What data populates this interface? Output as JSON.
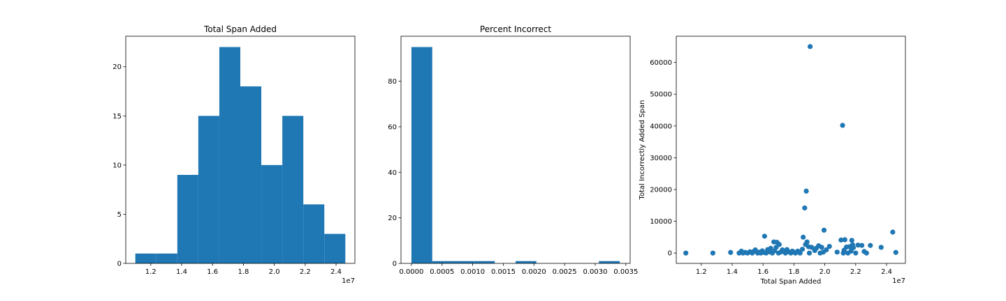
{
  "colors": {
    "bar": "#1f77b4",
    "point": "#1f77b4",
    "axis": "#000000",
    "background": "#ffffff"
  },
  "chart_data": [
    {
      "type": "bar",
      "subtype": "histogram",
      "title": "Total Span Added",
      "xlabel": "",
      "ylabel": "",
      "bin_edges": [
        11000000,
        12360000,
        13720000,
        15080000,
        16440000,
        17800000,
        19160000,
        20520000,
        21880000,
        23240000,
        24600000
      ],
      "values": [
        1,
        1,
        9,
        15,
        22,
        18,
        10,
        15,
        6,
        3
      ],
      "xlim": [
        10380000,
        25220000
      ],
      "ylim": [
        0,
        23.1
      ],
      "xticks": [
        12000000,
        14000000,
        16000000,
        18000000,
        20000000,
        22000000,
        24000000
      ],
      "xtick_labels": [
        "1.2",
        "1.4",
        "1.6",
        "1.8",
        "2.0",
        "2.2",
        "2.4"
      ],
      "x_offset_label": "1e7",
      "yticks": [
        0,
        5,
        10,
        15,
        20
      ],
      "ytick_labels": [
        "0",
        "5",
        "10",
        "15",
        "20"
      ],
      "grid": false,
      "legend": null
    },
    {
      "type": "bar",
      "subtype": "histogram",
      "title": "Percent Incorrect",
      "xlabel": "",
      "ylabel": "",
      "bin_edges": [
        0,
        0.00034,
        0.00068,
        0.00102,
        0.00136,
        0.0017,
        0.00204,
        0.00238,
        0.00272,
        0.00306,
        0.0034
      ],
      "values": [
        95,
        1,
        1,
        1,
        0,
        1,
        0,
        0,
        0,
        1
      ],
      "xlim": [
        -0.00017,
        0.00357
      ],
      "ylim": [
        0,
        99.75
      ],
      "xticks": [
        0,
        0.0005,
        0.001,
        0.0015,
        0.002,
        0.0025,
        0.003,
        0.0035
      ],
      "xtick_labels": [
        "0.0000",
        "0.0005",
        "0.0010",
        "0.0015",
        "0.0020",
        "0.0025",
        "0.0030",
        "0.0035"
      ],
      "yticks": [
        0,
        20,
        40,
        60,
        80
      ],
      "ytick_labels": [
        "0",
        "20",
        "40",
        "60",
        "80"
      ],
      "grid": false,
      "legend": null
    },
    {
      "type": "scatter",
      "title": "",
      "xlabel": "Total Span Added",
      "ylabel": "Total Incorrectly Added Span",
      "xlim": [
        10380000,
        25220000
      ],
      "ylim": [
        -3250,
        68250
      ],
      "xticks": [
        12000000,
        14000000,
        16000000,
        18000000,
        20000000,
        22000000,
        24000000
      ],
      "xtick_labels": [
        "1.2",
        "1.4",
        "1.6",
        "1.8",
        "2.0",
        "2.2",
        "2.4"
      ],
      "x_offset_label": "1e7",
      "yticks": [
        0,
        10000,
        20000,
        30000,
        40000,
        50000,
        60000
      ],
      "ytick_labels": [
        "0",
        "10000",
        "20000",
        "30000",
        "40000",
        "50000",
        "60000"
      ],
      "grid": false,
      "legend": null,
      "points": [
        [
          11000000,
          0
        ],
        [
          12750000,
          0
        ],
        [
          13900000,
          200
        ],
        [
          14450000,
          0
        ],
        [
          14600000,
          600
        ],
        [
          14700000,
          0
        ],
        [
          14850000,
          200
        ],
        [
          15000000,
          0
        ],
        [
          15150000,
          400
        ],
        [
          15300000,
          0
        ],
        [
          15400000,
          500
        ],
        [
          15500000,
          1000
        ],
        [
          15650000,
          0
        ],
        [
          15750000,
          300
        ],
        [
          15850000,
          0
        ],
        [
          15950000,
          700
        ],
        [
          16050000,
          200
        ],
        [
          16100000,
          5300
        ],
        [
          16200000,
          0
        ],
        [
          16300000,
          1100
        ],
        [
          16400000,
          400
        ],
        [
          16500000,
          1500
        ],
        [
          16600000,
          0
        ],
        [
          16700000,
          3500
        ],
        [
          16750000,
          700
        ],
        [
          16850000,
          1800
        ],
        [
          16900000,
          3400
        ],
        [
          17000000,
          0
        ],
        [
          17050000,
          2700
        ],
        [
          17150000,
          300
        ],
        [
          17250000,
          1000
        ],
        [
          17350000,
          600
        ],
        [
          17450000,
          0
        ],
        [
          17550000,
          1100
        ],
        [
          17650000,
          400
        ],
        [
          17800000,
          0
        ],
        [
          17900000,
          600
        ],
        [
          18000000,
          300
        ],
        [
          18100000,
          0
        ],
        [
          18250000,
          600
        ],
        [
          18400000,
          0
        ],
        [
          18550000,
          1200
        ],
        [
          18600000,
          5000
        ],
        [
          18700000,
          14200
        ],
        [
          18750000,
          2700
        ],
        [
          18800000,
          19500
        ],
        [
          18850000,
          3500
        ],
        [
          18950000,
          2000
        ],
        [
          19000000,
          0
        ],
        [
          19050000,
          65000
        ],
        [
          19150000,
          1800
        ],
        [
          19350000,
          800
        ],
        [
          19450000,
          1500
        ],
        [
          19600000,
          2300
        ],
        [
          19700000,
          0
        ],
        [
          19800000,
          1800
        ],
        [
          19900000,
          300
        ],
        [
          19950000,
          7200
        ],
        [
          20100000,
          1000
        ],
        [
          20300000,
          2100
        ],
        [
          20800000,
          300
        ],
        [
          21050000,
          4100
        ],
        [
          21150000,
          40200
        ],
        [
          21200000,
          0
        ],
        [
          21250000,
          900
        ],
        [
          21300000,
          4200
        ],
        [
          21400000,
          1900
        ],
        [
          21500000,
          0
        ],
        [
          21600000,
          2000
        ],
        [
          21700000,
          600
        ],
        [
          21750000,
          4000
        ],
        [
          21800000,
          2600
        ],
        [
          21850000,
          1700
        ],
        [
          22000000,
          0
        ],
        [
          22150000,
          2500
        ],
        [
          22400000,
          2400
        ],
        [
          22550000,
          500
        ],
        [
          22700000,
          0
        ],
        [
          22950000,
          2400
        ],
        [
          23650000,
          1800
        ],
        [
          24400000,
          6600
        ],
        [
          24600000,
          200
        ]
      ]
    }
  ]
}
